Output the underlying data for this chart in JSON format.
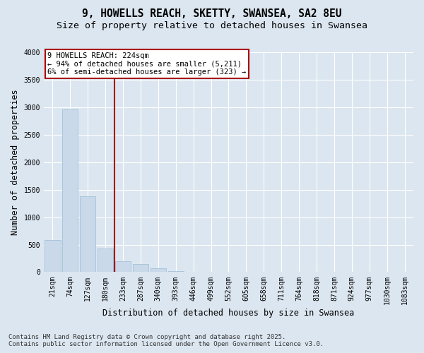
{
  "title": "9, HOWELLS REACH, SKETTY, SWANSEA, SA2 8EU",
  "subtitle": "Size of property relative to detached houses in Swansea",
  "xlabel": "Distribution of detached houses by size in Swansea",
  "ylabel": "Number of detached properties",
  "categories": [
    "21sqm",
    "74sqm",
    "127sqm",
    "180sqm",
    "233sqm",
    "287sqm",
    "340sqm",
    "393sqm",
    "446sqm",
    "499sqm",
    "552sqm",
    "605sqm",
    "658sqm",
    "711sqm",
    "764sqm",
    "818sqm",
    "871sqm",
    "924sqm",
    "977sqm",
    "1030sqm",
    "1083sqm"
  ],
  "values": [
    580,
    2960,
    1380,
    430,
    200,
    150,
    65,
    20,
    5,
    2,
    0,
    0,
    0,
    0,
    0,
    0,
    0,
    0,
    0,
    0,
    0
  ],
  "bar_color": "#c9d9ea",
  "bar_edge_color": "#9bbcd4",
  "vline_x_index": 3.5,
  "vline_color": "#aa0000",
  "annotation_text": "9 HOWELLS REACH: 224sqm\n← 94% of detached houses are smaller (5,211)\n6% of semi-detached houses are larger (323) →",
  "annotation_box_facecolor": "#ffffff",
  "annotation_box_edgecolor": "#aa0000",
  "ylim": [
    0,
    4000
  ],
  "yticks": [
    0,
    500,
    1000,
    1500,
    2000,
    2500,
    3000,
    3500,
    4000
  ],
  "bg_color": "#dce6f0",
  "grid_color": "#ffffff",
  "footer": "Contains HM Land Registry data © Crown copyright and database right 2025.\nContains public sector information licensed under the Open Government Licence v3.0.",
  "title_fontsize": 10.5,
  "subtitle_fontsize": 9.5,
  "axis_label_fontsize": 8.5,
  "tick_fontsize": 7,
  "footer_fontsize": 6.5,
  "ann_fontsize": 7.5
}
